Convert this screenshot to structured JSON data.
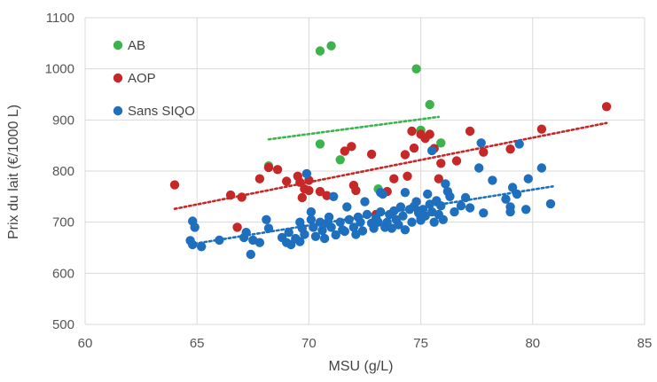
{
  "chart_data": {
    "type": "scatter",
    "xlabel": "MSU (g/L)",
    "ylabel": "Prix du lait (€/1000 L)",
    "xlim": [
      60,
      85
    ],
    "ylim": [
      500,
      1100
    ],
    "xticks": [
      "60",
      "65",
      "70",
      "75",
      "80",
      "85"
    ],
    "yticks": [
      "500",
      "600",
      "700",
      "800",
      "900",
      "1000",
      "1100"
    ],
    "grid": true,
    "legend_position": "top-left",
    "series": [
      {
        "name": "AB",
        "color": "#3cb44b",
        "points": [
          [
            70.5,
            1035
          ],
          [
            71.0,
            1045
          ],
          [
            74.8,
            1000
          ],
          [
            75.4,
            930
          ],
          [
            70.5,
            853
          ],
          [
            75.9,
            855
          ],
          [
            71.4,
            822
          ],
          [
            68.2,
            810
          ],
          [
            73.1,
            765
          ],
          [
            75.0,
            880
          ]
        ],
        "trendline": [
          [
            68.2,
            862
          ],
          [
            75.8,
            906
          ]
        ]
      },
      {
        "name": "AOP",
        "color": "#c62828",
        "points": [
          [
            64.0,
            773
          ],
          [
            66.5,
            753
          ],
          [
            67.0,
            749
          ],
          [
            66.8,
            690
          ],
          [
            68.2,
            807
          ],
          [
            68.6,
            803
          ],
          [
            67.8,
            785
          ],
          [
            69.0,
            780
          ],
          [
            69.5,
            790
          ],
          [
            69.6,
            778
          ],
          [
            69.8,
            765
          ],
          [
            70.0,
            782
          ],
          [
            70.0,
            762
          ],
          [
            69.7,
            748
          ],
          [
            70.5,
            760
          ],
          [
            70.8,
            752
          ],
          [
            71.6,
            839
          ],
          [
            71.9,
            848
          ],
          [
            72.0,
            772
          ],
          [
            72.1,
            762
          ],
          [
            72.8,
            833
          ],
          [
            73.5,
            760
          ],
          [
            73.8,
            785
          ],
          [
            74.3,
            832
          ],
          [
            74.6,
            878
          ],
          [
            74.7,
            845
          ],
          [
            75.0,
            872
          ],
          [
            75.2,
            864
          ],
          [
            75.4,
            872
          ],
          [
            75.6,
            844
          ],
          [
            75.9,
            815
          ],
          [
            75.8,
            785
          ],
          [
            76.6,
            820
          ],
          [
            77.2,
            878
          ],
          [
            77.8,
            837
          ],
          [
            79.0,
            843
          ],
          [
            80.4,
            882
          ],
          [
            83.3,
            926
          ],
          [
            74.4,
            790
          ],
          [
            73.0,
            715
          ]
        ],
        "trendline": [
          [
            64.0,
            726
          ],
          [
            83.3,
            894
          ]
        ]
      },
      {
        "name": "Sans SIQO",
        "color": "#1f6fbf",
        "points": [
          [
            64.8,
            702
          ],
          [
            64.9,
            690
          ],
          [
            64.7,
            664
          ],
          [
            64.8,
            656
          ],
          [
            65.2,
            652
          ],
          [
            66.0,
            665
          ],
          [
            67.2,
            680
          ],
          [
            67.1,
            670
          ],
          [
            67.5,
            665
          ],
          [
            67.8,
            660
          ],
          [
            67.4,
            637
          ],
          [
            68.1,
            705
          ],
          [
            68.2,
            688
          ],
          [
            68.8,
            670
          ],
          [
            69.1,
            680
          ],
          [
            69.2,
            656
          ],
          [
            69.4,
            668
          ],
          [
            69.6,
            700
          ],
          [
            69.7,
            688
          ],
          [
            69.8,
            676
          ],
          [
            69.6,
            662
          ],
          [
            69.9,
            795
          ],
          [
            70.1,
            720
          ],
          [
            70.2,
            690
          ],
          [
            70.3,
            672
          ],
          [
            70.5,
            700
          ],
          [
            70.6,
            684
          ],
          [
            70.7,
            668
          ],
          [
            70.9,
            710
          ],
          [
            71.0,
            690
          ],
          [
            71.1,
            750
          ],
          [
            71.2,
            675
          ],
          [
            71.4,
            700
          ],
          [
            71.6,
            682
          ],
          [
            71.8,
            705
          ],
          [
            72.0,
            690
          ],
          [
            72.1,
            676
          ],
          [
            72.3,
            700
          ],
          [
            72.4,
            683
          ],
          [
            72.6,
            715
          ],
          [
            72.8,
            698
          ],
          [
            72.9,
            688
          ],
          [
            73.0,
            708
          ],
          [
            73.2,
            720
          ],
          [
            73.3,
            755
          ],
          [
            73.4,
            690
          ],
          [
            73.5,
            700
          ],
          [
            73.6,
            715
          ],
          [
            73.8,
            722
          ],
          [
            73.9,
            705
          ],
          [
            74.0,
            695
          ],
          [
            74.1,
            730
          ],
          [
            74.2,
            712
          ],
          [
            74.3,
            685
          ],
          [
            74.5,
            725
          ],
          [
            74.6,
            700
          ],
          [
            74.8,
            740
          ],
          [
            74.9,
            718
          ],
          [
            75.0,
            704
          ],
          [
            75.1,
            725
          ],
          [
            75.2,
            712
          ],
          [
            75.3,
            755
          ],
          [
            75.4,
            735
          ],
          [
            75.5,
            720
          ],
          [
            75.6,
            700
          ],
          [
            75.7,
            742
          ],
          [
            75.8,
            715
          ],
          [
            75.9,
            732
          ],
          [
            76.1,
            775
          ],
          [
            76.3,
            750
          ],
          [
            76.5,
            720
          ],
          [
            76.8,
            732
          ],
          [
            77.0,
            748
          ],
          [
            77.2,
            728
          ],
          [
            77.7,
            855
          ],
          [
            77.8,
            718
          ],
          [
            78.2,
            782
          ],
          [
            78.8,
            745
          ],
          [
            79.0,
            730
          ],
          [
            79.1,
            768
          ],
          [
            79.3,
            755
          ],
          [
            79.7,
            725
          ],
          [
            79.8,
            785
          ],
          [
            80.4,
            806
          ],
          [
            80.8,
            736
          ],
          [
            79.4,
            853
          ],
          [
            75.5,
            840
          ],
          [
            73.2,
            758
          ],
          [
            70.1,
            705
          ],
          [
            71.7,
            730
          ],
          [
            72.5,
            740
          ],
          [
            74.3,
            758
          ],
          [
            76.0,
            705
          ],
          [
            77.6,
            806
          ],
          [
            79.0,
            720
          ],
          [
            71.5,
            685
          ],
          [
            69.0,
            660
          ],
          [
            73.7,
            688
          ],
          [
            74.9,
            722
          ],
          [
            75.0,
            708
          ],
          [
            76.2,
            760
          ],
          [
            72.2,
            710
          ],
          [
            70.8,
            698
          ],
          [
            73.1,
            700
          ],
          [
            74.7,
            731
          ]
        ],
        "trendline": [
          [
            64.9,
            658
          ],
          [
            80.9,
            770
          ]
        ]
      }
    ]
  }
}
